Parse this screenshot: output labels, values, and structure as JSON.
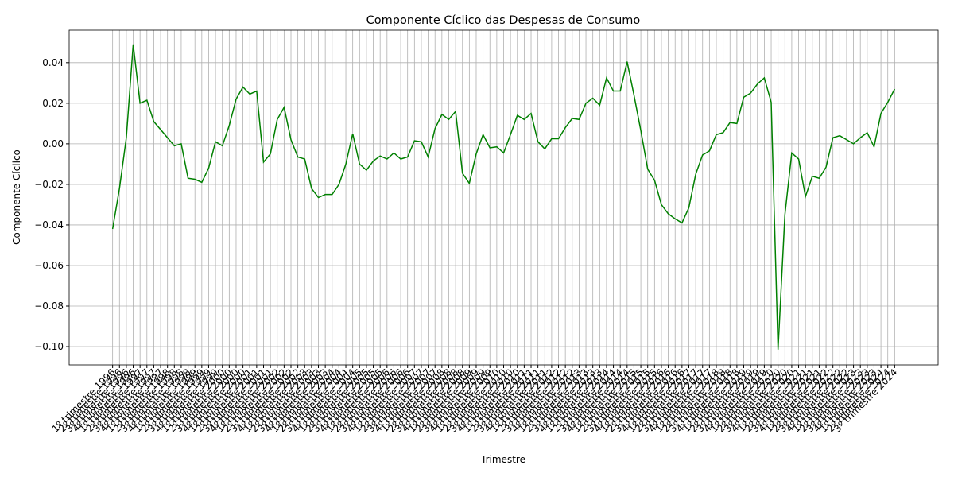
{
  "chart_data": {
    "type": "line",
    "title": "Componente Cíclico das Despesas de Consumo",
    "x_label": "Trimestre",
    "y_label": "Componente Cíclico",
    "categories": [
      "1º trimestre 1996",
      "2º trimestre 1996",
      "3º trimestre 1996",
      "4º trimestre 1996",
      "1º trimestre 1997",
      "2º trimestre 1997",
      "3º trimestre 1997",
      "4º trimestre 1997",
      "1º trimestre 1998",
      "2º trimestre 1998",
      "3º trimestre 1998",
      "4º trimestre 1998",
      "1º trimestre 1999",
      "2º trimestre 1999",
      "3º trimestre 1999",
      "4º trimestre 1999",
      "1º trimestre 2000",
      "2º trimestre 2000",
      "3º trimestre 2000",
      "4º trimestre 2000",
      "1º trimestre 2001",
      "2º trimestre 2001",
      "3º trimestre 2001",
      "4º trimestre 2001",
      "1º trimestre 2002",
      "2º trimestre 2002",
      "3º trimestre 2002",
      "4º trimestre 2002",
      "1º trimestre 2003",
      "2º trimestre 2003",
      "3º trimestre 2003",
      "4º trimestre 2003",
      "1º trimestre 2004",
      "2º trimestre 2004",
      "3º trimestre 2004",
      "4º trimestre 2004",
      "1º trimestre 2005",
      "2º trimestre 2005",
      "3º trimestre 2005",
      "4º trimestre 2005",
      "1º trimestre 2006",
      "2º trimestre 2006",
      "3º trimestre 2006",
      "4º trimestre 2006",
      "1º trimestre 2007",
      "2º trimestre 2007",
      "3º trimestre 2007",
      "4º trimestre 2007",
      "1º trimestre 2008",
      "2º trimestre 2008",
      "3º trimestre 2008",
      "4º trimestre 2008",
      "1º trimestre 2009",
      "2º trimestre 2009",
      "3º trimestre 2009",
      "4º trimestre 2009",
      "1º trimestre 2010",
      "2º trimestre 2010",
      "3º trimestre 2010",
      "4º trimestre 2010",
      "1º trimestre 2011",
      "2º trimestre 2011",
      "3º trimestre 2011",
      "4º trimestre 2011",
      "1º trimestre 2012",
      "2º trimestre 2012",
      "3º trimestre 2012",
      "4º trimestre 2012",
      "1º trimestre 2013",
      "2º trimestre 2013",
      "3º trimestre 2013",
      "4º trimestre 2013",
      "1º trimestre 2014",
      "2º trimestre 2014",
      "3º trimestre 2014",
      "4º trimestre 2014",
      "1º trimestre 2015",
      "2º trimestre 2015",
      "3º trimestre 2015",
      "4º trimestre 2015",
      "1º trimestre 2016",
      "2º trimestre 2016",
      "3º trimestre 2016",
      "4º trimestre 2016",
      "1º trimestre 2017",
      "2º trimestre 2017",
      "3º trimestre 2017",
      "4º trimestre 2017",
      "1º trimestre 2018",
      "2º trimestre 2018",
      "3º trimestre 2018",
      "4º trimestre 2018",
      "1º trimestre 2019",
      "2º trimestre 2019",
      "3º trimestre 2019",
      "4º trimestre 2019",
      "1º trimestre 2020",
      "2º trimestre 2020",
      "3º trimestre 2020",
      "4º trimestre 2020",
      "1º trimestre 2021",
      "2º trimestre 2021",
      "3º trimestre 2021",
      "4º trimestre 2021",
      "1º trimestre 2022",
      "2º trimestre 2022",
      "3º trimestre 2022",
      "4º trimestre 2022",
      "1º trimestre 2023",
      "2º trimestre 2023",
      "3º trimestre 2023",
      "4º trimestre 2023",
      "1º trimestre 2024",
      "2º trimestre 2024",
      "3º trimestre 2024"
    ],
    "series": [
      {
        "name": "Componente Cíclico",
        "color": "#008000",
        "values": [
          -0.042,
          -0.022,
          0.003,
          0.049,
          0.02,
          0.0215,
          0.011,
          0.007,
          0.003,
          -0.001,
          0.0,
          -0.017,
          -0.0175,
          -0.019,
          -0.012,
          0.001,
          -0.001,
          0.009,
          0.022,
          0.028,
          0.0245,
          0.026,
          -0.009,
          -0.005,
          0.012,
          0.018,
          0.002,
          -0.0065,
          -0.0075,
          -0.022,
          -0.0265,
          -0.025,
          -0.025,
          -0.02,
          -0.01,
          0.005,
          -0.01,
          -0.013,
          -0.0085,
          -0.006,
          -0.0075,
          -0.0045,
          -0.0075,
          -0.0065,
          0.0015,
          0.001,
          -0.0065,
          0.0075,
          0.0145,
          0.012,
          0.016,
          -0.0145,
          -0.0195,
          -0.005,
          0.0045,
          -0.002,
          -0.0015,
          -0.0045,
          0.0045,
          0.014,
          0.012,
          0.015,
          0.001,
          -0.0025,
          0.0025,
          0.0025,
          0.008,
          0.0125,
          0.012,
          0.02,
          0.0225,
          0.019,
          0.0325,
          0.026,
          0.026,
          0.0405,
          0.024,
          0.0065,
          -0.0125,
          -0.018,
          -0.03,
          -0.0345,
          -0.037,
          -0.039,
          -0.0315,
          -0.015,
          -0.0055,
          -0.0035,
          0.0045,
          0.0055,
          0.0105,
          0.01,
          0.023,
          0.025,
          0.0295,
          0.0325,
          0.0205,
          -0.1015,
          -0.035,
          -0.0045,
          -0.0075,
          -0.026,
          -0.016,
          -0.017,
          -0.0115,
          0.003,
          0.004,
          0.002,
          0.0,
          0.003,
          0.0055,
          -0.0015,
          0.015,
          0.0205,
          0.027
        ]
      }
    ],
    "ylim": [
      -0.109,
      0.056
    ],
    "yticks": [
      {
        "value": -0.1,
        "label": "−0.10"
      },
      {
        "value": -0.08,
        "label": "−0.08"
      },
      {
        "value": -0.06,
        "label": "−0.06"
      },
      {
        "value": -0.04,
        "label": "−0.04"
      },
      {
        "value": -0.02,
        "label": "−0.02"
      },
      {
        "value": 0.0,
        "label": "0.00"
      },
      {
        "value": 0.02,
        "label": "0.02"
      },
      {
        "value": 0.04,
        "label": "0.04"
      }
    ],
    "grid": true
  }
}
